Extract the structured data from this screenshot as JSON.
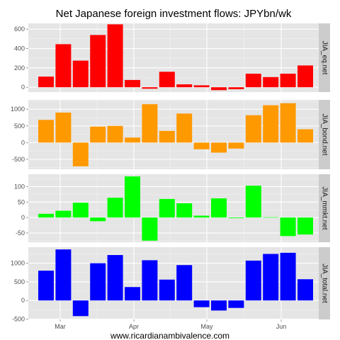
{
  "chart_data": {
    "type": "bar",
    "title": "Net Japanese foreign investment flows: JPYbn/wk",
    "caption": "www.ricardianambivalence.com",
    "x_ticks": [
      "Mar",
      "Apr",
      "May",
      "Jun"
    ],
    "weeks": 16,
    "grid": true,
    "panels": [
      {
        "strip_label": "JIA_eq.net",
        "color": "#ff0000",
        "ylim": [
          -50,
          660
        ],
        "y_ticks": [
          "0",
          "200",
          "400",
          "600"
        ],
        "y_tick_values": [
          0,
          200,
          400,
          600
        ],
        "values": [
          110,
          445,
          275,
          540,
          650,
          75,
          -15,
          160,
          30,
          20,
          -30,
          -20,
          140,
          105,
          140,
          225
        ]
      },
      {
        "strip_label": "JIA_bond.net",
        "color": "#ff9900",
        "ylim": [
          -800,
          1280
        ],
        "y_ticks": [
          "-500",
          "0",
          "500",
          "1000"
        ],
        "y_tick_values": [
          -500,
          0,
          500,
          1000
        ],
        "values": [
          680,
          900,
          -710,
          480,
          500,
          150,
          1150,
          350,
          870,
          -200,
          -300,
          -180,
          820,
          1120,
          1180,
          400
        ]
      },
      {
        "strip_label": "JIA_mmkt.net",
        "color": "#00ff00",
        "ylim": [
          -80,
          140
        ],
        "y_ticks": [
          "-50",
          "0",
          "50",
          "100"
        ],
        "y_tick_values": [
          -50,
          0,
          50,
          100
        ],
        "values": [
          12,
          22,
          48,
          -12,
          64,
          133,
          -75,
          60,
          46,
          6,
          62,
          -2,
          103,
          1,
          -60,
          -55
        ]
      },
      {
        "strip_label": "JIA_total.net",
        "color": "#0000ff",
        "ylim": [
          -510,
          1430
        ],
        "y_ticks": [
          "-500",
          "0",
          "500",
          "1000"
        ],
        "y_tick_values": [
          -500,
          0,
          500,
          1000
        ],
        "values": [
          800,
          1370,
          -420,
          1000,
          1220,
          360,
          1080,
          560,
          950,
          -180,
          -270,
          -200,
          1070,
          1250,
          1280,
          570
        ]
      }
    ]
  }
}
